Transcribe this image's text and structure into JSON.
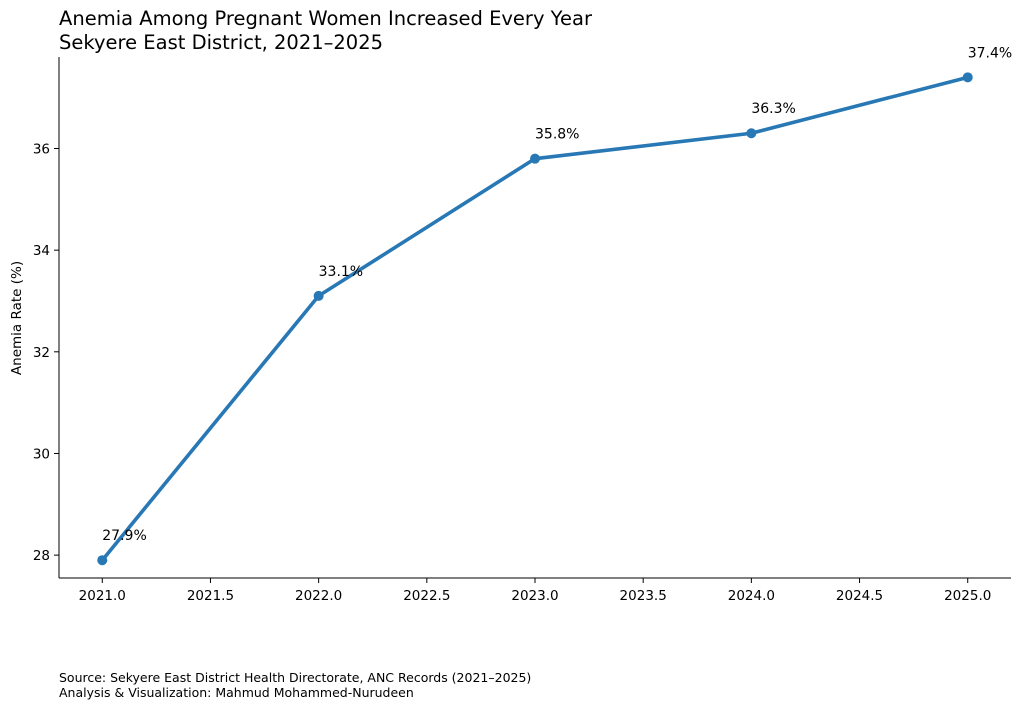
{
  "chart_data": {
    "type": "line",
    "title": "Anemia Among Pregnant Women Increased Every Year",
    "subtitle": "Sekyere East District, 2021–2025",
    "xlabel": "",
    "ylabel": "Anemia Rate (%)",
    "xlim": [
      2020.8,
      2025.2
    ],
    "ylim": [
      27.55,
      37.8
    ],
    "x_ticks": [
      2021.0,
      2021.5,
      2022.0,
      2022.5,
      2023.0,
      2023.5,
      2024.0,
      2024.5,
      2025.0
    ],
    "x_tick_labels": [
      "2021.0",
      "2021.5",
      "2022.0",
      "2022.5",
      "2023.0",
      "2023.5",
      "2024.0",
      "2024.5",
      "2025.0"
    ],
    "y_ticks": [
      28,
      30,
      32,
      34,
      36
    ],
    "y_tick_labels": [
      "28",
      "30",
      "32",
      "34",
      "36"
    ],
    "grid": false,
    "series": [
      {
        "x": [
          2021,
          2022,
          2023,
          2024,
          2025
        ],
        "values": [
          27.9,
          33.1,
          35.8,
          36.3,
          37.4
        ],
        "data_labels": [
          "27.9%",
          "33.1%",
          "35.8%",
          "36.3%",
          "37.4%"
        ],
        "color": "#2878b5"
      }
    ]
  },
  "footer": {
    "source": "Source: Sekyere East District Health Directorate, ANC Records (2021–2025)",
    "credit": "Analysis & Visualization: Mahmud Mohammed-Nurudeen"
  }
}
